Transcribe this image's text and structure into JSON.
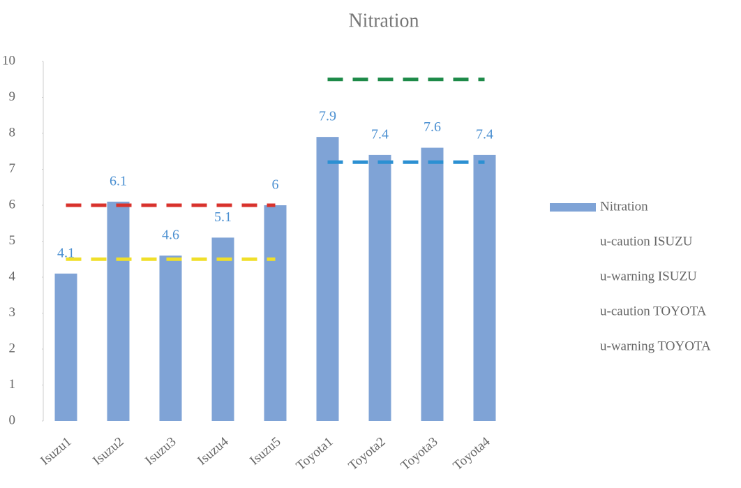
{
  "chart_data": {
    "type": "bar",
    "title": "Nitration",
    "categories": [
      "Isuzu1",
      "Isuzu2",
      "Isuzu3",
      "Isuzu4",
      "Isuzu5",
      "Toyota1",
      "Toyota2",
      "Toyota3",
      "Toyota4"
    ],
    "series": [
      {
        "name": "Nitration",
        "type": "bar",
        "color": "#7fa3d6",
        "values": [
          4.1,
          6.1,
          4.6,
          5.1,
          6,
          7.9,
          7.4,
          7.6,
          7.4
        ]
      },
      {
        "name": "u-caution ISUZU",
        "type": "line",
        "color": "#f0df2a",
        "values": [
          4.5,
          4.5,
          4.5,
          4.5,
          4.5,
          null,
          null,
          null,
          null
        ]
      },
      {
        "name": "u-warning ISUZU",
        "type": "line",
        "color": "#d8322c",
        "values": [
          6,
          6,
          6,
          6,
          6,
          null,
          null,
          null,
          null
        ]
      },
      {
        "name": "u-caution TOYOTA",
        "type": "line",
        "color": "#2c90d2",
        "values": [
          null,
          null,
          null,
          null,
          null,
          7.2,
          7.2,
          7.2,
          7.2
        ]
      },
      {
        "name": "u-warning TOYOTA",
        "type": "line",
        "color": "#1d8a48",
        "values": [
          null,
          null,
          null,
          null,
          null,
          9.5,
          9.5,
          9.5,
          9.5
        ]
      }
    ],
    "ylim": [
      0,
      10
    ],
    "yticks": [
      0,
      1,
      2,
      3,
      4,
      5,
      6,
      7,
      8,
      9,
      10
    ],
    "legend": "right"
  }
}
